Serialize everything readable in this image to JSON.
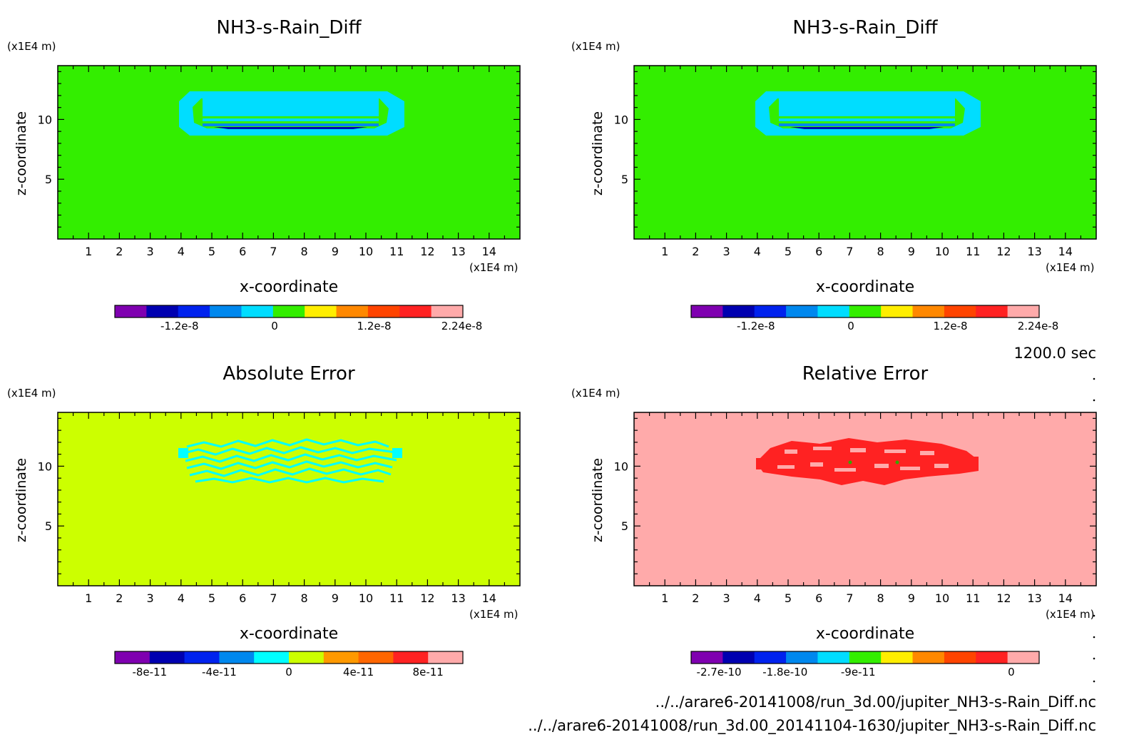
{
  "chart_data": [
    {
      "type": "heatmap",
      "title": "NH3-s-Rain_Diff",
      "xlabel": "x-coordinate",
      "ylabel": "z-coordinate",
      "x_unit": "(x1E4 m)",
      "y_unit": "(x1E4 m)",
      "xlim": [
        0,
        15
      ],
      "ylim": [
        0,
        14.5
      ],
      "xticks": [
        "1",
        "2",
        "3",
        "4",
        "5",
        "6",
        "7",
        "8",
        "9",
        "10",
        "11",
        "12",
        "13",
        "14"
      ],
      "yticks": [
        "5",
        "10"
      ],
      "background_color": "#33ee00",
      "colorbar": {
        "colors": [
          "#7f00b0",
          "#0000b0",
          "#0022ee",
          "#0088ee",
          "#00ddff",
          "#33ee00",
          "#ffee00",
          "#ff8800",
          "#ff4400",
          "#ff2222",
          "#ffaaaa"
        ],
        "labels": [
          "-1.2e-8",
          "0",
          "1.2e-8",
          "2.24e-8"
        ]
      }
    },
    {
      "type": "heatmap",
      "title": "NH3-s-Rain_Diff",
      "xlabel": "x-coordinate",
      "ylabel": "z-coordinate",
      "x_unit": "(x1E4 m)",
      "y_unit": "(x1E4 m)",
      "xlim": [
        0,
        15
      ],
      "ylim": [
        0,
        14.5
      ],
      "xticks": [
        "1",
        "2",
        "3",
        "4",
        "5",
        "6",
        "7",
        "8",
        "9",
        "10",
        "11",
        "12",
        "13",
        "14"
      ],
      "yticks": [
        "5",
        "10"
      ],
      "background_color": "#33ee00",
      "colorbar": {
        "colors": [
          "#7f00b0",
          "#0000b0",
          "#0022ee",
          "#0088ee",
          "#00ddff",
          "#33ee00",
          "#ffee00",
          "#ff8800",
          "#ff4400",
          "#ff2222",
          "#ffaaaa"
        ],
        "labels": [
          "-1.2e-8",
          "0",
          "1.2e-8",
          "2.24e-8"
        ]
      }
    },
    {
      "type": "heatmap",
      "title": "Absolute Error",
      "xlabel": "x-coordinate",
      "ylabel": "z-coordinate",
      "x_unit": "(x1E4 m)",
      "y_unit": "(x1E4 m)",
      "xlim": [
        0,
        15
      ],
      "ylim": [
        0,
        14.5
      ],
      "xticks": [
        "1",
        "2",
        "3",
        "4",
        "5",
        "6",
        "7",
        "8",
        "9",
        "10",
        "11",
        "12",
        "13",
        "14"
      ],
      "yticks": [
        "5",
        "10"
      ],
      "background_color": "#ccff00",
      "colorbar": {
        "colors": [
          "#7f00b0",
          "#0000b0",
          "#0022ee",
          "#0088ee",
          "#00ffff",
          "#ccff00",
          "#ff9900",
          "#ff6600",
          "#ff2222",
          "#ffaaaa"
        ],
        "labels": [
          "-8e-11",
          "-4e-11",
          "0",
          "4e-11",
          "8e-11"
        ]
      }
    },
    {
      "type": "heatmap",
      "title": "Relative Error",
      "xlabel": "x-coordinate",
      "ylabel": "z-coordinate",
      "x_unit": "(x1E4 m)",
      "y_unit": "(x1E4 m)",
      "xlim": [
        0,
        15
      ],
      "ylim": [
        0,
        14.5
      ],
      "xticks": [
        "1",
        "2",
        "3",
        "4",
        "5",
        "6",
        "7",
        "8",
        "9",
        "10",
        "11",
        "12",
        "13",
        "14"
      ],
      "yticks": [
        "5",
        "10"
      ],
      "background_color": "#ffaaaa",
      "colorbar": {
        "colors": [
          "#7f00b0",
          "#0000b0",
          "#0022ee",
          "#0088ee",
          "#00ddff",
          "#33ee00",
          "#ffee00",
          "#ff8800",
          "#ff4400",
          "#ff2222",
          "#ffaaaa"
        ],
        "labels": [
          "-2.7e-10",
          "-1.8e-10",
          "-9e-11",
          "0"
        ]
      }
    }
  ],
  "footer": {
    "time": "1200.0 sec",
    "file1": "../../arare6-20141008/run_3d.00/jupiter_NH3-s-Rain_Diff.nc",
    "file2": "../../arare6-20141008/run_3d.00_20141104-1630/jupiter_NH3-s-Rain_Diff.nc"
  }
}
